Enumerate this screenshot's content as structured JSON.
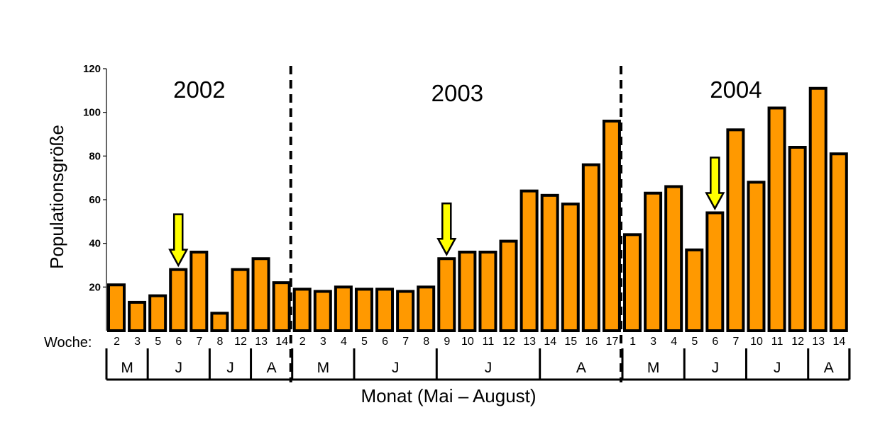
{
  "colors": {
    "bar": "#FF9900",
    "bar_stroke": "#000000",
    "arrow": "#FFFF00"
  },
  "chart_data": {
    "type": "bar",
    "ylabel": "Populationsgröße",
    "xlabel": "Monat (Mai – August)",
    "week_axis_label": "Woche:",
    "ylim": [
      0,
      120
    ],
    "yticks": [
      "120",
      "100",
      "80",
      "60",
      "40",
      "20"
    ],
    "years": [
      {
        "label": "2002",
        "weeks": [
          "2",
          "3",
          "5",
          "6",
          "7",
          "8",
          "12",
          "13",
          "14"
        ],
        "values": [
          21,
          13,
          16,
          28,
          36,
          8,
          28,
          33,
          22
        ],
        "months": [
          "M",
          "J",
          "J",
          "A"
        ],
        "month_week_counts": [
          2,
          3,
          2,
          2
        ],
        "arrow_week": "6"
      },
      {
        "label": "2003",
        "weeks": [
          "2",
          "3",
          "4",
          "5",
          "6",
          "7",
          "8",
          "9",
          "10",
          "11",
          "12",
          "13",
          "14",
          "15",
          "16",
          "17"
        ],
        "values": [
          19,
          18,
          20,
          19,
          19,
          18,
          20,
          33,
          36,
          36,
          41,
          64,
          62,
          58,
          76,
          96
        ],
        "months": [
          "M",
          "J",
          "J",
          "A"
        ],
        "month_week_counts": [
          3,
          4,
          5,
          4
        ],
        "arrow_week": "9"
      },
      {
        "label": "2004",
        "weeks": [
          "1",
          "3",
          "4",
          "5",
          "6",
          "7",
          "10",
          "11",
          "12",
          "13",
          "14"
        ],
        "values": [
          44,
          63,
          66,
          37,
          54,
          92,
          68,
          102,
          84,
          111,
          81
        ],
        "months": [
          "M",
          "J",
          "J",
          "A"
        ],
        "month_week_counts": [
          3,
          3,
          3,
          2
        ],
        "arrow_week": "6"
      }
    ]
  }
}
